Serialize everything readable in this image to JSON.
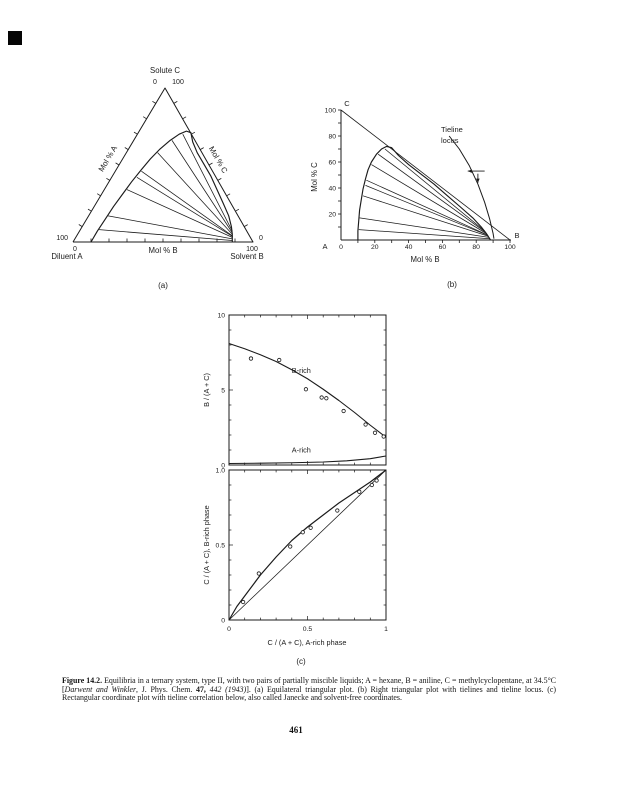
{
  "page": {
    "number": "461",
    "caption_parts": [
      {
        "t": "Figure 14.2.",
        "b": 1
      },
      {
        "t": "  Equilibria in a ternary system, type II, with two pairs of partially miscible liquids;  A = hexane,  B = aniline, C = methylcyclopentane, at 34.5°C ["
      },
      {
        "t": "Darwent and Winkler",
        "i": 1
      },
      {
        "t": ", J. Phys. Chem. "
      },
      {
        "t": "47,",
        "b": 1
      },
      {
        "t": " "
      },
      {
        "t": "442 (1943)",
        "i": 1
      },
      {
        "t": "]. (a) Equilateral triangular plot. (b) Right triangular plot with tielines and tieline locus. (c) Rectangular coordinate plot with tieline correlation below, also called Janecke and solvent-free coordinates."
      }
    ]
  },
  "chart_data": [
    {
      "type": "ternary",
      "panel": "(a)",
      "apex_title": "Solute C",
      "apex_left_val": "0",
      "apex_right_val": "100",
      "left_axis_label": "Mol % A",
      "right_axis_label": "Mol % C",
      "bottom_axis_label": "Mol % B",
      "bottom_left_name": "Diluent A",
      "bottom_left_side_val": "100",
      "bottom_left_base_val": "0",
      "bottom_right_name": "Solvent B",
      "bottom_right_side_val": "0",
      "bottom_right_base_val": "100",
      "axis_range": [
        0,
        100
      ],
      "tick_step": 10,
      "binodal_BC": [
        [
          10,
          0
        ],
        [
          10,
          7
        ],
        [
          10.5,
          15
        ],
        [
          11,
          23
        ],
        [
          12,
          31
        ],
        [
          13,
          39
        ],
        [
          14.5,
          47
        ],
        [
          16,
          54
        ],
        [
          18,
          60
        ],
        [
          21,
          66
        ],
        [
          24,
          70
        ],
        [
          27,
          72
        ],
        [
          30,
          71
        ],
        [
          34,
          65
        ],
        [
          40,
          58
        ],
        [
          47,
          51
        ],
        [
          55,
          43
        ],
        [
          63,
          34
        ],
        [
          71,
          25
        ],
        [
          78,
          17
        ],
        [
          83,
          10
        ],
        [
          86,
          5
        ],
        [
          88,
          1
        ],
        [
          88.5,
          0
        ]
      ],
      "tielines_BC": [
        [
          [
            26,
            70
          ],
          [
            85,
            7
          ]
        ],
        [
          [
            22,
            66
          ],
          [
            85.5,
            6
          ]
        ],
        [
          [
            18,
            58
          ],
          [
            86,
            5
          ]
        ],
        [
          [
            15,
            46
          ],
          [
            86.5,
            4
          ]
        ],
        [
          [
            14.5,
            42
          ],
          [
            87,
            3.5
          ]
        ],
        [
          [
            13,
            34
          ],
          [
            87,
            3
          ]
        ],
        [
          [
            11,
            17
          ],
          [
            87.5,
            2
          ]
        ],
        [
          [
            10.5,
            8
          ],
          [
            88,
            1
          ]
        ]
      ]
    },
    {
      "type": "right_triangle",
      "panel": "(b)",
      "xlabel": "Mol % B",
      "ylabel": "Mol % C",
      "x_ticks": [
        0,
        20,
        40,
        60,
        80,
        100
      ],
      "y_ticks": [
        0,
        20,
        40,
        60,
        80,
        100
      ],
      "minor_step": 10,
      "xlim": [
        0,
        100
      ],
      "ylim": [
        0,
        100
      ],
      "corner_origin": "A",
      "corner_x_end": "B",
      "corner_y_top": "C",
      "annotation_lines": [
        "Tieline",
        "locus"
      ],
      "diagonal": [
        [
          0,
          100
        ],
        [
          100,
          0
        ]
      ],
      "binodal": [
        [
          10,
          0
        ],
        [
          10,
          7
        ],
        [
          10.5,
          15
        ],
        [
          11,
          23
        ],
        [
          12,
          31
        ],
        [
          13,
          39
        ],
        [
          14.5,
          47
        ],
        [
          16,
          54
        ],
        [
          18,
          60
        ],
        [
          21,
          66
        ],
        [
          24,
          70
        ],
        [
          27,
          72
        ],
        [
          30,
          71
        ],
        [
          34,
          65
        ],
        [
          40,
          58
        ],
        [
          47,
          51
        ],
        [
          55,
          43
        ],
        [
          63,
          34
        ],
        [
          71,
          25
        ],
        [
          78,
          17
        ],
        [
          83,
          10
        ],
        [
          86,
          5
        ],
        [
          88,
          1
        ],
        [
          88.5,
          0
        ]
      ],
      "tielines": [
        [
          [
            26,
            70
          ],
          [
            85,
            7
          ]
        ],
        [
          [
            22,
            66
          ],
          [
            85.5,
            6
          ]
        ],
        [
          [
            18,
            58
          ],
          [
            86,
            5
          ]
        ],
        [
          [
            15,
            46
          ],
          [
            86.5,
            4
          ]
        ],
        [
          [
            14.5,
            42
          ],
          [
            87,
            3.5
          ]
        ],
        [
          [
            13,
            34
          ],
          [
            87,
            3
          ]
        ],
        [
          [
            11,
            17
          ],
          [
            87.5,
            2
          ]
        ],
        [
          [
            10.5,
            8
          ],
          [
            88,
            1
          ]
        ]
      ],
      "tieline_locus": [
        [
          64,
          80
        ],
        [
          70,
          70
        ],
        [
          76,
          57
        ],
        [
          81,
          43
        ],
        [
          85,
          29
        ],
        [
          88,
          16
        ],
        [
          90,
          5
        ],
        [
          90.5,
          1
        ]
      ],
      "arrows": [
        {
          "from": [
            85,
            53
          ],
          "to": [
            75,
            53
          ]
        },
        {
          "from": [
            81,
            51
          ],
          "to": [
            81,
            44
          ]
        }
      ]
    },
    {
      "type": "dual_rect",
      "panel": "(c)",
      "top": {
        "ylabel": "B / (A + C)",
        "y_ticks": [
          0,
          5,
          10
        ],
        "y_tick_labels": [
          "0",
          "5",
          "10"
        ],
        "ylim": [
          0,
          10
        ],
        "xlim": [
          0,
          1
        ],
        "y_minor": 1,
        "x_minor": 0.1,
        "series": [
          {
            "name": "B-rich",
            "label_pos": [
              0.4,
              6.15
            ],
            "curve": [
              [
                0,
                8.1
              ],
              [
                0.1,
                7.75
              ],
              [
                0.2,
                7.35
              ],
              [
                0.3,
                6.9
              ],
              [
                0.4,
                6.35
              ],
              [
                0.5,
                5.75
              ],
              [
                0.6,
                5.05
              ],
              [
                0.7,
                4.3
              ],
              [
                0.8,
                3.5
              ],
              [
                0.9,
                2.65
              ],
              [
                1,
                1.85
              ]
            ],
            "points": [
              [
                0.14,
                7.1
              ],
              [
                0.32,
                7.0
              ],
              [
                0.49,
                5.05
              ],
              [
                0.59,
                4.5
              ],
              [
                0.62,
                4.45
              ],
              [
                0.73,
                3.6
              ],
              [
                0.87,
                2.7
              ],
              [
                0.93,
                2.15
              ],
              [
                0.985,
                1.9
              ]
            ]
          },
          {
            "name": "A-rich",
            "label_pos": [
              0.4,
              0.85
            ],
            "curve": [
              [
                0,
                0.1
              ],
              [
                0.2,
                0.12
              ],
              [
                0.4,
                0.15
              ],
              [
                0.6,
                0.2
              ],
              [
                0.75,
                0.28
              ],
              [
                0.9,
                0.42
              ],
              [
                1,
                0.6
              ]
            ],
            "points": []
          }
        ]
      },
      "bottom": {
        "ylabel": "C / (A + C), B-rich phase",
        "xlabel": "C / (A + C), A-rich phase",
        "x_ticks": [
          0,
          0.5,
          1
        ],
        "x_tick_labels": [
          "0",
          "0.5",
          "1"
        ],
        "y_ticks": [
          0,
          0.5,
          1
        ],
        "y_tick_labels": [
          "0",
          "0.5",
          "1.0"
        ],
        "xlim": [
          0,
          1
        ],
        "ylim": [
          0,
          1
        ],
        "minor": 0.1,
        "diagonal": [
          [
            0,
            0
          ],
          [
            1,
            1
          ]
        ],
        "curve": [
          [
            0,
            0
          ],
          [
            0.05,
            0.09
          ],
          [
            0.1,
            0.16
          ],
          [
            0.2,
            0.3
          ],
          [
            0.3,
            0.42
          ],
          [
            0.4,
            0.53
          ],
          [
            0.5,
            0.62
          ],
          [
            0.6,
            0.7
          ],
          [
            0.7,
            0.78
          ],
          [
            0.8,
            0.85
          ],
          [
            0.9,
            0.92
          ],
          [
            1,
            1
          ]
        ],
        "points": [
          [
            0.09,
            0.12
          ],
          [
            0.19,
            0.31
          ],
          [
            0.39,
            0.49
          ],
          [
            0.47,
            0.585
          ],
          [
            0.52,
            0.615
          ],
          [
            0.69,
            0.73
          ],
          [
            0.83,
            0.855
          ],
          [
            0.91,
            0.9
          ],
          [
            0.94,
            0.93
          ]
        ]
      }
    }
  ],
  "colors": {
    "ink": "#1b1b1b",
    "paper": "#ffffff"
  }
}
